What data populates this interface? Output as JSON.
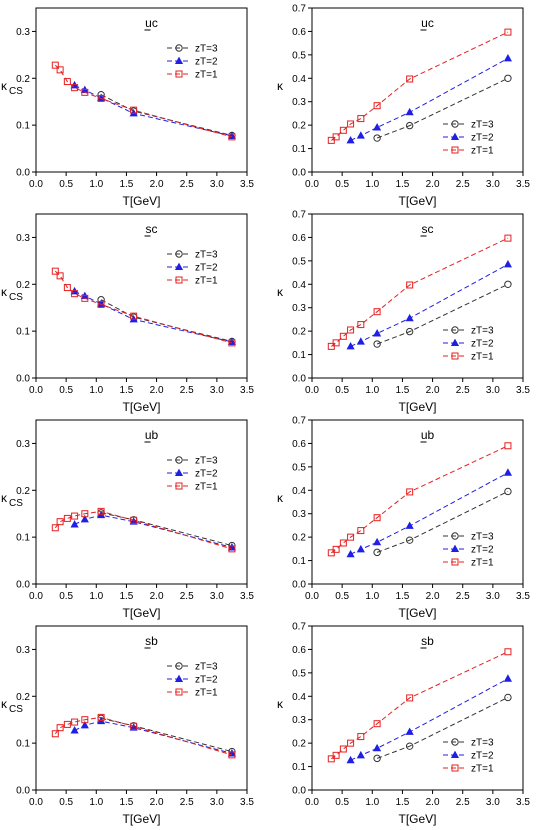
{
  "chart_data": [
    {
      "type": "line",
      "title": "uc",
      "title_underline": "u",
      "xlabel": "T[GeV]",
      "ylabel": "κ",
      "ylabel_sub": "CS",
      "xlim": [
        0,
        3.5
      ],
      "ylim": [
        0,
        0.35
      ],
      "xticks": [
        "0.0",
        "0.5",
        "1.0",
        "1.5",
        "2.0",
        "2.5",
        "3.0",
        "3.5"
      ],
      "yticks": [
        "0.0",
        "0.1",
        "0.2",
        "0.3"
      ],
      "legend": "top-right",
      "grid": false,
      "series": [
        {
          "name": "zT=3",
          "color": "#333333",
          "marker": "circle",
          "x": [
            1.08,
            1.62,
            3.25
          ],
          "y": [
            0.165,
            0.13,
            0.078
          ]
        },
        {
          "name": "zT=2",
          "color": "#1f1fe6",
          "marker": "triangle",
          "x": [
            0.64,
            0.81,
            1.08,
            1.62,
            3.25
          ],
          "y": [
            0.185,
            0.175,
            0.158,
            0.125,
            0.077
          ]
        },
        {
          "name": "zT=1",
          "color": "#e62020",
          "marker": "square",
          "x": [
            0.32,
            0.4,
            0.52,
            0.64,
            0.81,
            1.08,
            1.62,
            3.25
          ],
          "y": [
            0.228,
            0.218,
            0.193,
            0.18,
            0.17,
            0.157,
            0.132,
            0.075
          ]
        }
      ]
    },
    {
      "type": "line",
      "title": "uc",
      "title_underline": "u",
      "xlabel": "T[GeV]",
      "ylabel": "κ",
      "ylabel_sub": "",
      "xlim": [
        0,
        3.5
      ],
      "ylim": [
        0,
        0.7
      ],
      "xticks": [
        "0.0",
        "0.5",
        "1.0",
        "1.5",
        "2.0",
        "2.5",
        "3.0",
        "3.5"
      ],
      "yticks": [
        "0.0",
        "0.1",
        "0.2",
        "0.3",
        "0.4",
        "0.5",
        "0.6",
        "0.7"
      ],
      "legend": "bottom-right",
      "grid": false,
      "series": [
        {
          "name": "zT=3",
          "color": "#333333",
          "marker": "circle",
          "x": [
            1.08,
            1.62,
            3.25
          ],
          "y": [
            0.145,
            0.198,
            0.4
          ]
        },
        {
          "name": "zT=2",
          "color": "#1f1fe6",
          "marker": "triangle",
          "x": [
            0.64,
            0.81,
            1.08,
            1.62,
            3.25
          ],
          "y": [
            0.135,
            0.155,
            0.19,
            0.255,
            0.485
          ]
        },
        {
          "name": "zT=1",
          "color": "#e62020",
          "marker": "square",
          "x": [
            0.32,
            0.4,
            0.52,
            0.64,
            0.81,
            1.08,
            1.62,
            3.25
          ],
          "y": [
            0.135,
            0.15,
            0.178,
            0.205,
            0.228,
            0.283,
            0.397,
            0.597
          ]
        }
      ]
    },
    {
      "type": "line",
      "title": "sc",
      "title_underline": "s",
      "xlabel": "T[GeV]",
      "ylabel": "κ",
      "ylabel_sub": "CS",
      "xlim": [
        0,
        3.5
      ],
      "ylim": [
        0,
        0.35
      ],
      "xticks": [
        "0.0",
        "0.5",
        "1.0",
        "1.5",
        "2.0",
        "2.5",
        "3.0",
        "3.5"
      ],
      "yticks": [
        "0.0",
        "0.1",
        "0.2",
        "0.3"
      ],
      "legend": "top-right",
      "grid": false,
      "series": [
        {
          "name": "zT=3",
          "color": "#333333",
          "marker": "circle",
          "x": [
            1.08,
            1.62,
            3.25
          ],
          "y": [
            0.167,
            0.13,
            0.078
          ]
        },
        {
          "name": "zT=2",
          "color": "#1f1fe6",
          "marker": "triangle",
          "x": [
            0.64,
            0.81,
            1.08,
            1.62,
            3.25
          ],
          "y": [
            0.185,
            0.175,
            0.158,
            0.125,
            0.077
          ]
        },
        {
          "name": "zT=1",
          "color": "#e62020",
          "marker": "square",
          "x": [
            0.32,
            0.4,
            0.52,
            0.64,
            0.81,
            1.08,
            1.62,
            3.25
          ],
          "y": [
            0.228,
            0.218,
            0.193,
            0.18,
            0.17,
            0.157,
            0.132,
            0.075
          ]
        }
      ]
    },
    {
      "type": "line",
      "title": "sc",
      "title_underline": "s",
      "xlabel": "T[GeV]",
      "ylabel": "κ",
      "ylabel_sub": "",
      "xlim": [
        0,
        3.5
      ],
      "ylim": [
        0,
        0.7
      ],
      "xticks": [
        "0.0",
        "0.5",
        "1.0",
        "1.5",
        "2.0",
        "2.5",
        "3.0",
        "3.5"
      ],
      "yticks": [
        "0.0",
        "0.1",
        "0.2",
        "0.3",
        "0.4",
        "0.5",
        "0.6",
        "0.7"
      ],
      "legend": "bottom-right",
      "grid": false,
      "series": [
        {
          "name": "zT=3",
          "color": "#333333",
          "marker": "circle",
          "x": [
            1.08,
            1.62,
            3.25
          ],
          "y": [
            0.145,
            0.198,
            0.4
          ]
        },
        {
          "name": "zT=2",
          "color": "#1f1fe6",
          "marker": "triangle",
          "x": [
            0.64,
            0.81,
            1.08,
            1.62,
            3.25
          ],
          "y": [
            0.135,
            0.155,
            0.19,
            0.255,
            0.485
          ]
        },
        {
          "name": "zT=1",
          "color": "#e62020",
          "marker": "square",
          "x": [
            0.32,
            0.4,
            0.52,
            0.64,
            0.81,
            1.08,
            1.62,
            3.25
          ],
          "y": [
            0.135,
            0.15,
            0.178,
            0.205,
            0.228,
            0.283,
            0.397,
            0.597
          ]
        }
      ]
    },
    {
      "type": "line",
      "title": "ub",
      "title_underline": "u",
      "xlabel": "T[GeV]",
      "ylabel": "κ",
      "ylabel_sub": "CS",
      "xlim": [
        0,
        3.5
      ],
      "ylim": [
        0,
        0.35
      ],
      "xticks": [
        "0.0",
        "0.5",
        "1.0",
        "1.5",
        "2.0",
        "2.5",
        "3.0",
        "3.5"
      ],
      "yticks": [
        "0.0",
        "0.1",
        "0.2",
        "0.3"
      ],
      "legend": "top-right",
      "grid": false,
      "series": [
        {
          "name": "zT=3",
          "color": "#333333",
          "marker": "circle",
          "x": [
            1.08,
            1.62,
            3.25
          ],
          "y": [
            0.152,
            0.137,
            0.082
          ]
        },
        {
          "name": "zT=2",
          "color": "#1f1fe6",
          "marker": "triangle",
          "x": [
            0.64,
            0.81,
            1.08,
            1.62,
            3.25
          ],
          "y": [
            0.127,
            0.138,
            0.147,
            0.133,
            0.078
          ]
        },
        {
          "name": "zT=1",
          "color": "#e62020",
          "marker": "square",
          "x": [
            0.32,
            0.4,
            0.52,
            0.64,
            0.81,
            1.08,
            1.62,
            3.25
          ],
          "y": [
            0.12,
            0.133,
            0.14,
            0.145,
            0.15,
            0.155,
            0.136,
            0.075
          ]
        }
      ]
    },
    {
      "type": "line",
      "title": "ub",
      "title_underline": "u",
      "xlabel": "T[GeV]",
      "ylabel": "κ",
      "ylabel_sub": "",
      "xlim": [
        0,
        3.5
      ],
      "ylim": [
        0,
        0.7
      ],
      "xticks": [
        "0.0",
        "0.5",
        "1.0",
        "1.5",
        "2.0",
        "2.5",
        "3.0",
        "3.5"
      ],
      "yticks": [
        "0.0",
        "0.1",
        "0.2",
        "0.3",
        "0.4",
        "0.5",
        "0.6",
        "0.7"
      ],
      "legend": "bottom-right",
      "grid": false,
      "series": [
        {
          "name": "zT=3",
          "color": "#333333",
          "marker": "circle",
          "x": [
            1.08,
            1.62,
            3.25
          ],
          "y": [
            0.135,
            0.187,
            0.395
          ]
        },
        {
          "name": "zT=2",
          "color": "#1f1fe6",
          "marker": "triangle",
          "x": [
            0.64,
            0.81,
            1.08,
            1.62,
            3.25
          ],
          "y": [
            0.127,
            0.148,
            0.178,
            0.248,
            0.475
          ]
        },
        {
          "name": "zT=1",
          "color": "#e62020",
          "marker": "square",
          "x": [
            0.32,
            0.4,
            0.52,
            0.64,
            0.81,
            1.08,
            1.62,
            3.25
          ],
          "y": [
            0.133,
            0.148,
            0.175,
            0.2,
            0.228,
            0.283,
            0.393,
            0.59
          ]
        }
      ]
    },
    {
      "type": "line",
      "title": "sb",
      "title_underline": "s",
      "xlabel": "T[GeV]",
      "ylabel": "κ",
      "ylabel_sub": "CS",
      "xlim": [
        0,
        3.5
      ],
      "ylim": [
        0,
        0.35
      ],
      "xticks": [
        "0.0",
        "0.5",
        "1.0",
        "1.5",
        "2.0",
        "2.5",
        "3.0",
        "3.5"
      ],
      "yticks": [
        "0.0",
        "0.1",
        "0.2",
        "0.3"
      ],
      "legend": "top-right",
      "grid": false,
      "series": [
        {
          "name": "zT=3",
          "color": "#333333",
          "marker": "circle",
          "x": [
            1.08,
            1.62,
            3.25
          ],
          "y": [
            0.153,
            0.137,
            0.082
          ]
        },
        {
          "name": "zT=2",
          "color": "#1f1fe6",
          "marker": "triangle",
          "x": [
            0.64,
            0.81,
            1.08,
            1.62,
            3.25
          ],
          "y": [
            0.127,
            0.138,
            0.147,
            0.133,
            0.078
          ]
        },
        {
          "name": "zT=1",
          "color": "#e62020",
          "marker": "square",
          "x": [
            0.32,
            0.4,
            0.52,
            0.64,
            0.81,
            1.08,
            1.62,
            3.25
          ],
          "y": [
            0.12,
            0.133,
            0.14,
            0.145,
            0.15,
            0.155,
            0.136,
            0.075
          ]
        }
      ]
    },
    {
      "type": "line",
      "title": "sb",
      "title_underline": "s",
      "xlabel": "T[GeV]",
      "ylabel": "κ",
      "ylabel_sub": "",
      "xlim": [
        0,
        3.5
      ],
      "ylim": [
        0,
        0.7
      ],
      "xticks": [
        "0.0",
        "0.5",
        "1.0",
        "1.5",
        "2.0",
        "2.5",
        "3.0",
        "3.5"
      ],
      "yticks": [
        "0.0",
        "0.1",
        "0.2",
        "0.3",
        "0.4",
        "0.5",
        "0.6",
        "0.7"
      ],
      "legend": "bottom-right",
      "grid": false,
      "series": [
        {
          "name": "zT=3",
          "color": "#333333",
          "marker": "circle",
          "x": [
            1.08,
            1.62,
            3.25
          ],
          "y": [
            0.135,
            0.187,
            0.395
          ]
        },
        {
          "name": "zT=2",
          "color": "#1f1fe6",
          "marker": "triangle",
          "x": [
            0.64,
            0.81,
            1.08,
            1.62,
            3.25
          ],
          "y": [
            0.127,
            0.148,
            0.178,
            0.248,
            0.475
          ]
        },
        {
          "name": "zT=1",
          "color": "#e62020",
          "marker": "square",
          "x": [
            0.32,
            0.4,
            0.52,
            0.64,
            0.81,
            1.08,
            1.62,
            3.25
          ],
          "y": [
            0.133,
            0.148,
            0.175,
            0.2,
            0.228,
            0.283,
            0.393,
            0.59
          ]
        }
      ]
    }
  ]
}
